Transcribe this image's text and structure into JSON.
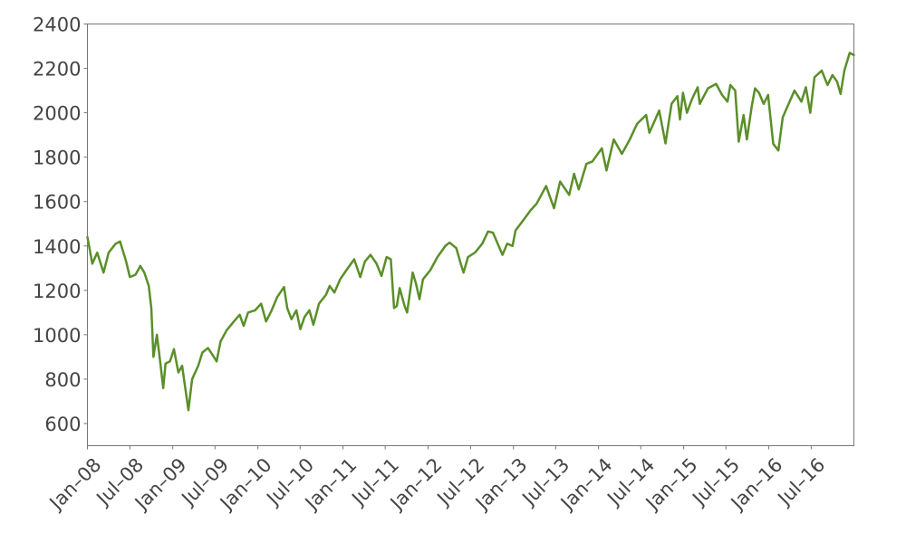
{
  "chart_data": {
    "type": "line",
    "title": "",
    "xlabel": "",
    "ylabel": "",
    "xlim": [
      "2008-01-01",
      "2016-12-31"
    ],
    "ylim": [
      500,
      2400
    ],
    "yticks": [
      600,
      800,
      1000,
      1200,
      1400,
      1600,
      1800,
      2000,
      2200,
      2400
    ],
    "xticks": [
      {
        "date": "2008-01-01",
        "label": "Jan–08"
      },
      {
        "date": "2008-07-01",
        "label": "Jul–08"
      },
      {
        "date": "2009-01-01",
        "label": "Jan–09"
      },
      {
        "date": "2009-07-01",
        "label": "Jul–09"
      },
      {
        "date": "2010-01-01",
        "label": "Jan–10"
      },
      {
        "date": "2010-07-01",
        "label": "Jul–10"
      },
      {
        "date": "2011-01-01",
        "label": "Jan–11"
      },
      {
        "date": "2011-07-01",
        "label": "Jul–11"
      },
      {
        "date": "2012-01-01",
        "label": "Jan–12"
      },
      {
        "date": "2012-07-01",
        "label": "Jul–12"
      },
      {
        "date": "2013-01-01",
        "label": "Jan–13"
      },
      {
        "date": "2013-07-01",
        "label": "Jul–13"
      },
      {
        "date": "2014-01-01",
        "label": "Jan–14"
      },
      {
        "date": "2014-07-01",
        "label": "Jul–14"
      },
      {
        "date": "2015-01-01",
        "label": "Jan–15"
      },
      {
        "date": "2015-07-01",
        "label": "Jul–15"
      },
      {
        "date": "2016-01-01",
        "label": "Jan–16"
      },
      {
        "date": "2016-07-01",
        "label": "Jul–16"
      }
    ],
    "grid": false,
    "series": [
      {
        "color": "#5a8f29",
        "points": [
          [
            "2008-01-01",
            1440
          ],
          [
            "2008-01-22",
            1320
          ],
          [
            "2008-02-12",
            1370
          ],
          [
            "2008-03-10",
            1280
          ],
          [
            "2008-04-01",
            1370
          ],
          [
            "2008-05-01",
            1410
          ],
          [
            "2008-05-20",
            1420
          ],
          [
            "2008-06-15",
            1330
          ],
          [
            "2008-07-01",
            1260
          ],
          [
            "2008-07-25",
            1270
          ],
          [
            "2008-08-15",
            1310
          ],
          [
            "2008-09-01",
            1280
          ],
          [
            "2008-09-20",
            1220
          ],
          [
            "2008-10-01",
            1120
          ],
          [
            "2008-10-10",
            900
          ],
          [
            "2008-10-25",
            1000
          ],
          [
            "2008-11-10",
            860
          ],
          [
            "2008-11-21",
            760
          ],
          [
            "2008-12-01",
            870
          ],
          [
            "2008-12-20",
            880
          ],
          [
            "2009-01-06",
            935
          ],
          [
            "2009-01-25",
            830
          ],
          [
            "2009-02-10",
            860
          ],
          [
            "2009-03-01",
            720
          ],
          [
            "2009-03-09",
            660
          ],
          [
            "2009-03-25",
            800
          ],
          [
            "2009-04-20",
            860
          ],
          [
            "2009-05-08",
            920
          ],
          [
            "2009-06-01",
            940
          ],
          [
            "2009-06-20",
            910
          ],
          [
            "2009-07-08",
            880
          ],
          [
            "2009-07-25",
            970
          ],
          [
            "2009-08-20",
            1020
          ],
          [
            "2009-09-20",
            1060
          ],
          [
            "2009-10-15",
            1090
          ],
          [
            "2009-11-01",
            1040
          ],
          [
            "2009-11-20",
            1100
          ],
          [
            "2009-12-20",
            1110
          ],
          [
            "2010-01-15",
            1140
          ],
          [
            "2010-02-05",
            1060
          ],
          [
            "2010-03-01",
            1110
          ],
          [
            "2010-03-25",
            1170
          ],
          [
            "2010-04-23",
            1215
          ],
          [
            "2010-05-07",
            1120
          ],
          [
            "2010-05-25",
            1070
          ],
          [
            "2010-06-15",
            1110
          ],
          [
            "2010-07-02",
            1025
          ],
          [
            "2010-07-20",
            1080
          ],
          [
            "2010-08-10",
            1110
          ],
          [
            "2010-08-27",
            1045
          ],
          [
            "2010-09-20",
            1140
          ],
          [
            "2010-10-20",
            1180
          ],
          [
            "2010-11-05",
            1220
          ],
          [
            "2010-11-25",
            1190
          ],
          [
            "2010-12-20",
            1250
          ],
          [
            "2011-01-15",
            1290
          ],
          [
            "2011-02-18",
            1340
          ],
          [
            "2011-03-16",
            1260
          ],
          [
            "2011-04-05",
            1330
          ],
          [
            "2011-04-29",
            1360
          ],
          [
            "2011-05-25",
            1320
          ],
          [
            "2011-06-15",
            1265
          ],
          [
            "2011-07-07",
            1350
          ],
          [
            "2011-07-25",
            1340
          ],
          [
            "2011-08-08",
            1120
          ],
          [
            "2011-08-20",
            1130
          ],
          [
            "2011-09-01",
            1210
          ],
          [
            "2011-09-22",
            1130
          ],
          [
            "2011-10-03",
            1100
          ],
          [
            "2011-10-27",
            1280
          ],
          [
            "2011-11-10",
            1230
          ],
          [
            "2011-11-25",
            1160
          ],
          [
            "2011-12-10",
            1250
          ],
          [
            "2012-01-10",
            1290
          ],
          [
            "2012-02-10",
            1350
          ],
          [
            "2012-03-15",
            1400
          ],
          [
            "2012-04-02",
            1415
          ],
          [
            "2012-05-01",
            1390
          ],
          [
            "2012-05-20",
            1320
          ],
          [
            "2012-06-01",
            1280
          ],
          [
            "2012-06-20",
            1350
          ],
          [
            "2012-07-20",
            1370
          ],
          [
            "2012-08-20",
            1410
          ],
          [
            "2012-09-14",
            1465
          ],
          [
            "2012-10-05",
            1460
          ],
          [
            "2012-11-15",
            1360
          ],
          [
            "2012-12-05",
            1410
          ],
          [
            "2012-12-28",
            1400
          ],
          [
            "2013-01-10",
            1470
          ],
          [
            "2013-02-15",
            1520
          ],
          [
            "2013-03-15",
            1560
          ],
          [
            "2013-04-10",
            1590
          ],
          [
            "2013-05-21",
            1670
          ],
          [
            "2013-06-24",
            1570
          ],
          [
            "2013-07-20",
            1690
          ],
          [
            "2013-08-28",
            1630
          ],
          [
            "2013-09-18",
            1725
          ],
          [
            "2013-10-08",
            1655
          ],
          [
            "2013-11-10",
            1770
          ],
          [
            "2013-12-05",
            1780
          ],
          [
            "2014-01-15",
            1840
          ],
          [
            "2014-02-04",
            1740
          ],
          [
            "2014-03-07",
            1880
          ],
          [
            "2014-04-11",
            1815
          ],
          [
            "2014-05-15",
            1880
          ],
          [
            "2014-06-15",
            1950
          ],
          [
            "2014-07-24",
            1990
          ],
          [
            "2014-08-07",
            1910
          ],
          [
            "2014-09-18",
            2010
          ],
          [
            "2014-10-15",
            1862
          ],
          [
            "2014-11-10",
            2040
          ],
          [
            "2014-12-05",
            2075
          ],
          [
            "2014-12-16",
            1970
          ],
          [
            "2014-12-29",
            2090
          ],
          [
            "2015-01-15",
            2000
          ],
          [
            "2015-02-05",
            2060
          ],
          [
            "2015-03-02",
            2115
          ],
          [
            "2015-03-11",
            2040
          ],
          [
            "2015-04-15",
            2110
          ],
          [
            "2015-05-20",
            2130
          ],
          [
            "2015-06-15",
            2080
          ],
          [
            "2015-07-08",
            2050
          ],
          [
            "2015-07-20",
            2125
          ],
          [
            "2015-08-10",
            2100
          ],
          [
            "2015-08-25",
            1870
          ],
          [
            "2015-09-15",
            1990
          ],
          [
            "2015-09-29",
            1880
          ],
          [
            "2015-10-20",
            2030
          ],
          [
            "2015-11-03",
            2110
          ],
          [
            "2015-11-20",
            2090
          ],
          [
            "2015-12-10",
            2040
          ],
          [
            "2015-12-29",
            2080
          ],
          [
            "2016-01-20",
            1860
          ],
          [
            "2016-02-11",
            1830
          ],
          [
            "2016-03-01",
            1980
          ],
          [
            "2016-04-20",
            2100
          ],
          [
            "2016-05-20",
            2050
          ],
          [
            "2016-06-08",
            2115
          ],
          [
            "2016-06-27",
            2000
          ],
          [
            "2016-07-15",
            2160
          ],
          [
            "2016-08-15",
            2190
          ],
          [
            "2016-09-09",
            2125
          ],
          [
            "2016-09-30",
            2170
          ],
          [
            "2016-10-20",
            2140
          ],
          [
            "2016-11-04",
            2085
          ],
          [
            "2016-11-20",
            2190
          ],
          [
            "2016-12-13",
            2270
          ],
          [
            "2016-12-31",
            2260
          ]
        ]
      }
    ]
  }
}
